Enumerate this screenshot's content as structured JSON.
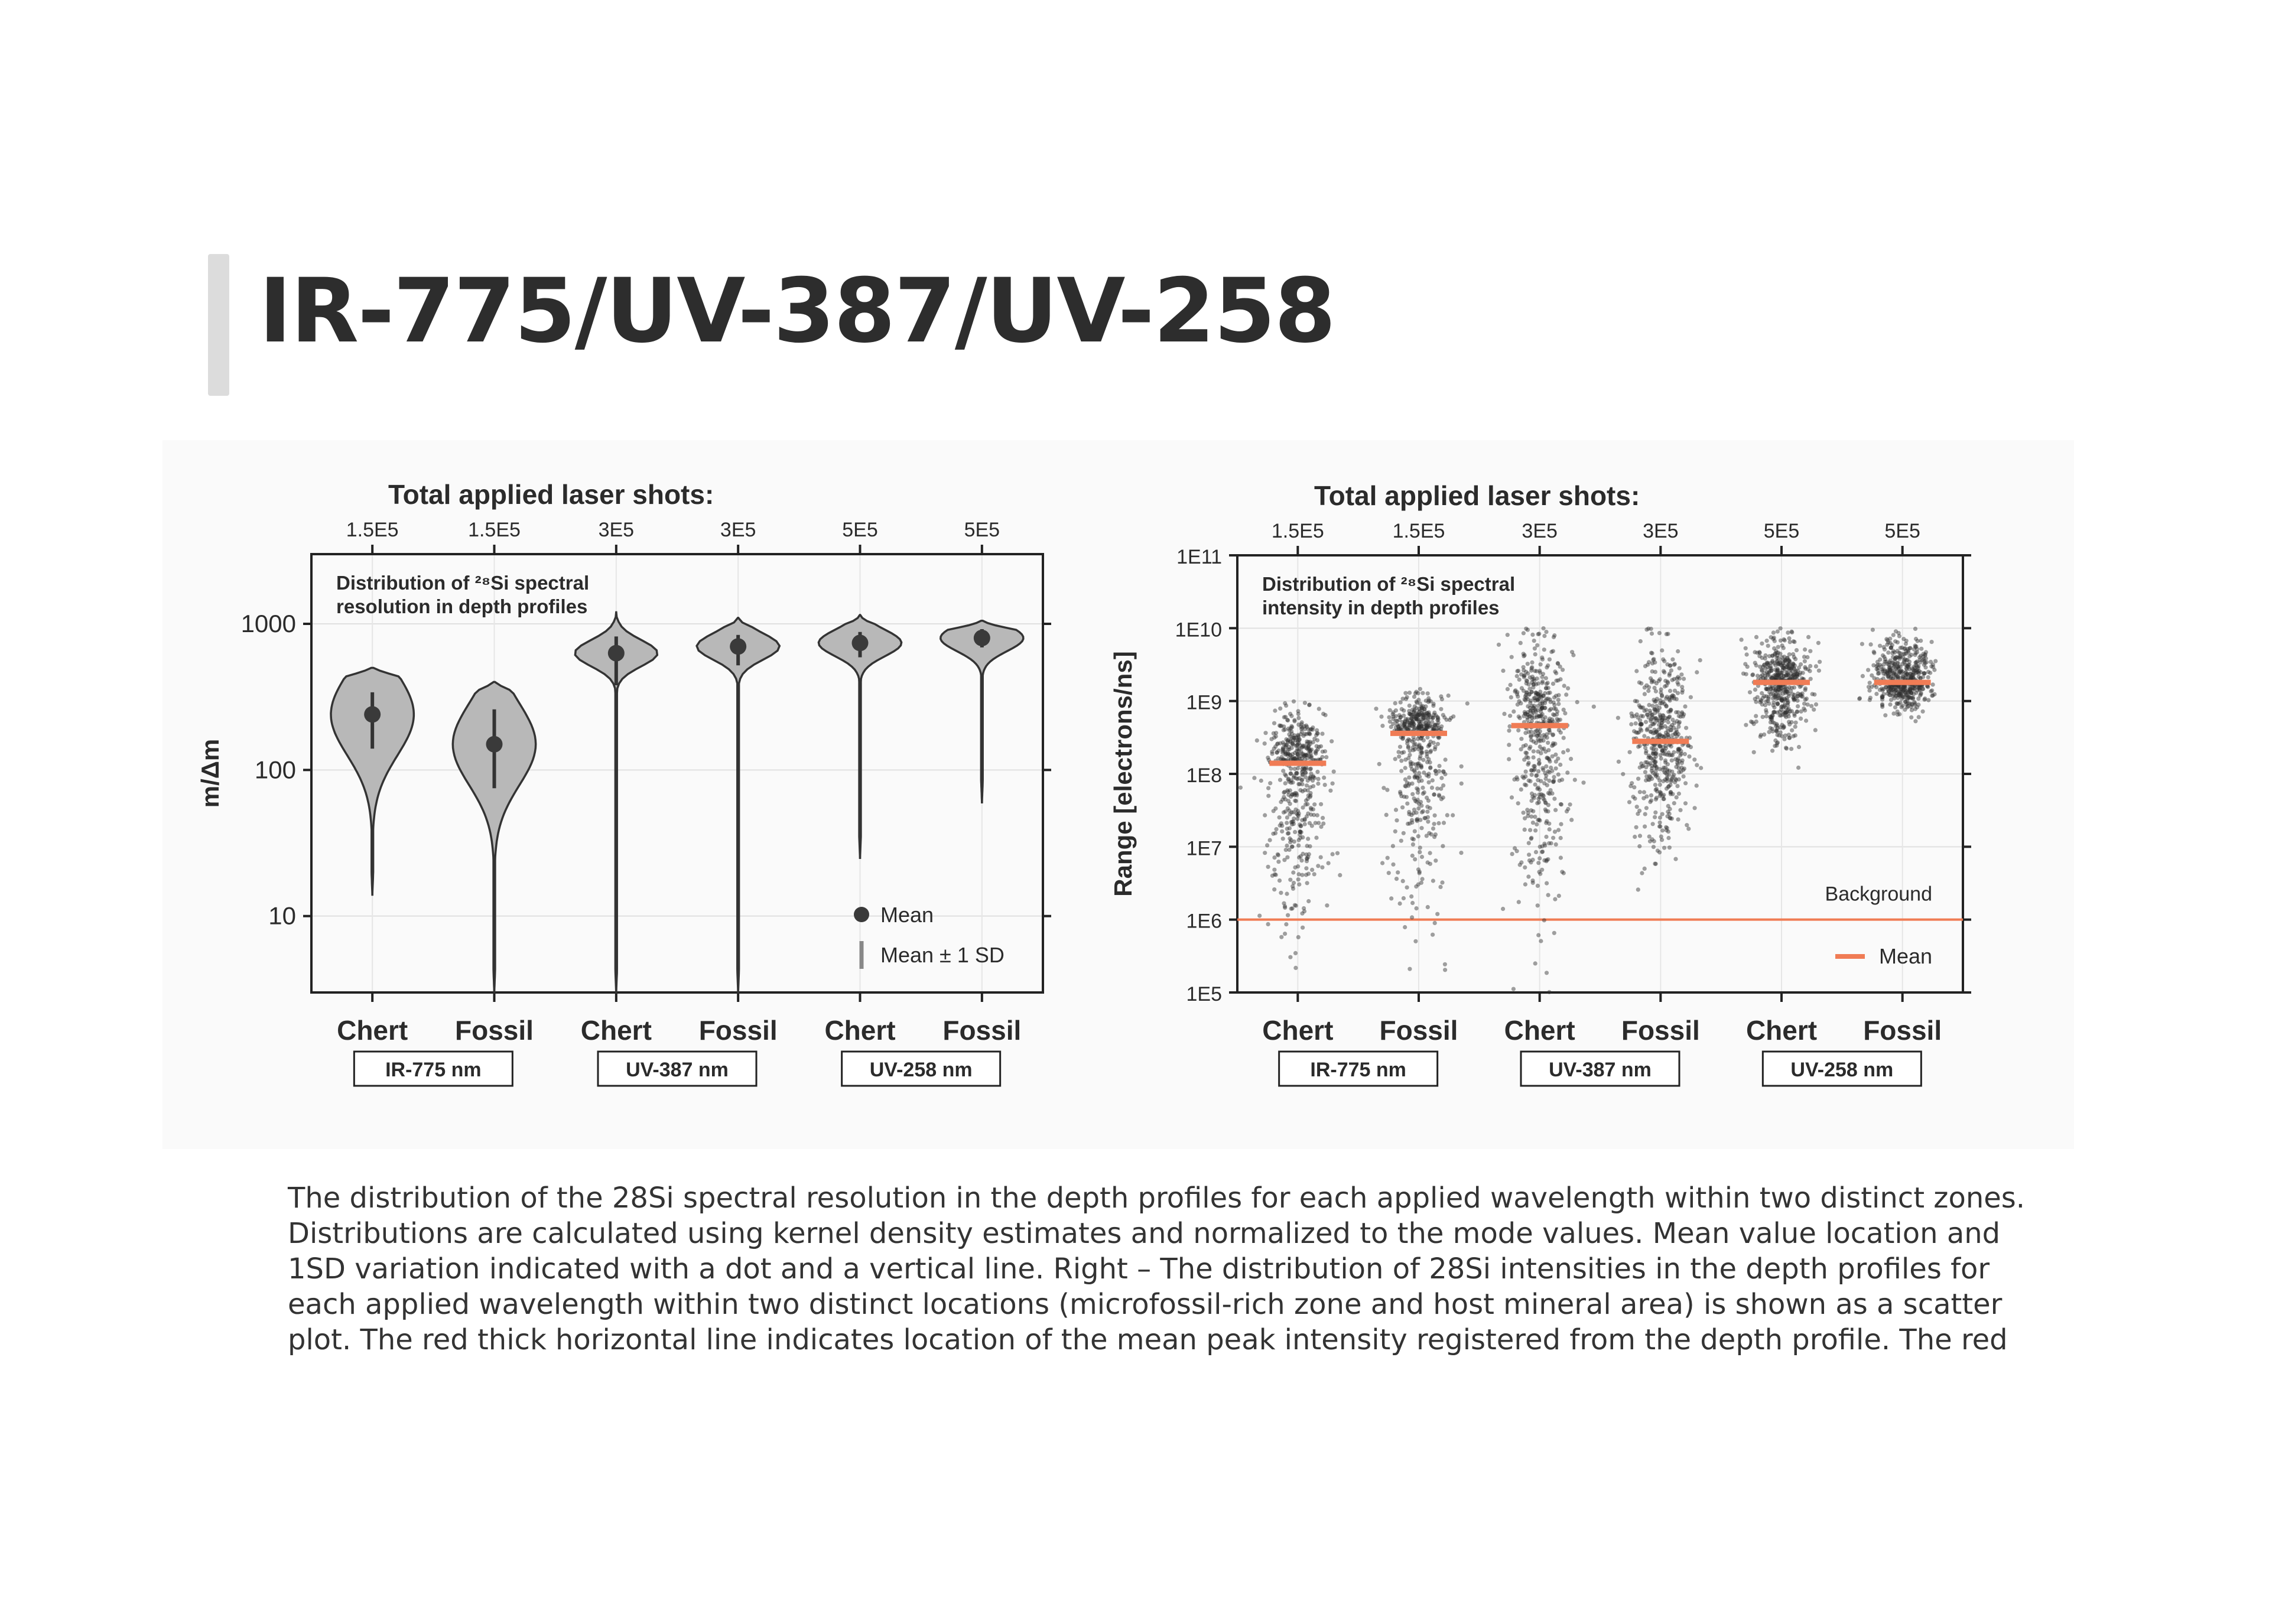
{
  "slide": {
    "title": "IR-775/UV-387/UV-258",
    "caption": "The distribution of the 28Si spectral resolution in the depth profiles for each applied wavelength within two distinct zones. Distributions are calculated using kernel density estimates and normalized to the mode values. Mean value location and 1SD variation indicated with a dot and a vertical line. Right – The distribution of 28Si intensities in the depth profiles for each applied wavelength within two distinct locations (microfossil-rich zone and host mineral area) is shown as a scatter plot. The red thick horizontal line indicates location of the mean peak intensity registered from the depth profile. The red"
  },
  "colors": {
    "violin_fill": "#b8b8b8",
    "point": "#3a3a3a",
    "mean_line": "#f07c55",
    "text": "#2b2b2b"
  },
  "chart_data": [
    {
      "type": "violin",
      "top_title": "Total applied laser shots:",
      "top_labels": [
        "1.5E5",
        "1.5E5",
        "3E5",
        "3E5",
        "5E5",
        "5E5"
      ],
      "inset_label_line1": "Distribution of ²⁸Si spectral",
      "inset_label_line2": "resolution in depth profiles",
      "ylabel": "m/Δm",
      "yscale": "log",
      "ylim": [
        3,
        3000
      ],
      "yticks": [
        10,
        100,
        1000
      ],
      "ytick_labels": [
        "10",
        "100",
        "1000"
      ],
      "grid": true,
      "categories": [
        "Chert",
        "Fossil",
        "Chert",
        "Fossil",
        "Chert",
        "Fossil"
      ],
      "groups": [
        "IR-775 nm",
        "UV-387 nm",
        "UV-258 nm"
      ],
      "means": [
        240,
        150,
        630,
        700,
        740,
        800
      ],
      "sd_range": [
        [
          140,
          340
        ],
        [
          75,
          260
        ],
        [
          380,
          820
        ],
        [
          520,
          840
        ],
        [
          590,
          880
        ],
        [
          690,
          920
        ]
      ],
      "distribution_range": [
        [
          14,
          500
        ],
        [
          3,
          400
        ],
        [
          3,
          1200
        ],
        [
          3,
          1100
        ],
        [
          25,
          1150
        ],
        [
          60,
          1050
        ]
      ],
      "legend": {
        "position": "bottom-right",
        "mean_label": "Mean",
        "sd_label": "Mean ± 1 SD"
      }
    },
    {
      "type": "scatter",
      "top_title": "Total applied laser shots:",
      "top_labels": [
        "1.5E5",
        "1.5E5",
        "3E5",
        "3E5",
        "5E5",
        "5E5"
      ],
      "inset_label_line1": "Distribution of ²⁸Si spectral",
      "inset_label_line2": "intensity in depth profiles",
      "ylabel": "Range [electrons/ns]",
      "yscale": "log",
      "ylim": [
        100000,
        100000000000
      ],
      "yticks": [
        100000,
        1000000,
        10000000,
        100000000,
        1000000000,
        10000000000,
        100000000000
      ],
      "ytick_labels": [
        "1E5",
        "1E6",
        "1E7",
        "1E8",
        "1E9",
        "1E10",
        "1E11"
      ],
      "grid": true,
      "categories": [
        "Chert",
        "Fossil",
        "Chert",
        "Fossil",
        "Chert",
        "Fossil"
      ],
      "groups": [
        "IR-775 nm",
        "UV-387 nm",
        "UV-258 nm"
      ],
      "means": [
        140000000,
        360000000,
        460000000,
        280000000,
        1800000000,
        1800000000
      ],
      "spread_range": [
        [
          200000,
          1000000000
        ],
        [
          200000,
          1500000000
        ],
        [
          100000,
          10000000000
        ],
        [
          2500000,
          10000000000
        ],
        [
          100000000,
          10000000000
        ],
        [
          500000000,
          10000000000
        ]
      ],
      "background_level": 1000000,
      "background_label": "Background",
      "legend": {
        "position": "bottom-right",
        "mean_label": "Mean"
      }
    }
  ]
}
